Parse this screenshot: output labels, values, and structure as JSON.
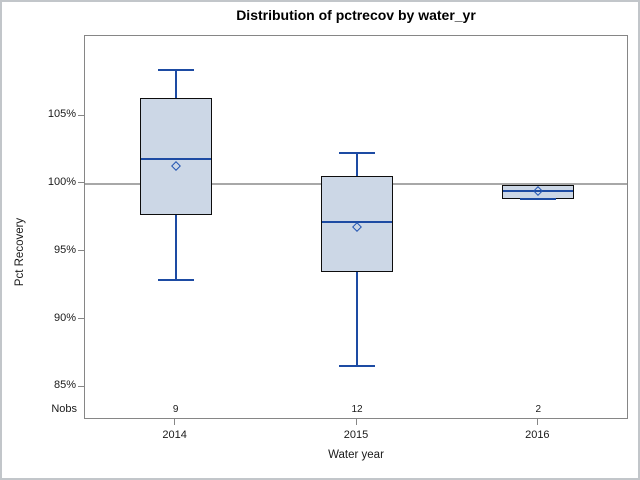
{
  "chart_data": {
    "type": "box",
    "title": "Distribution of pctrecov by water_yr",
    "xlabel": "Water year",
    "ylabel": "Pct Recovery",
    "nobs_label": "Nobs",
    "categories": [
      "2014",
      "2015",
      "2016"
    ],
    "nobs": [
      "9",
      "12",
      "2"
    ],
    "series": [
      {
        "category": "2014",
        "n": 9,
        "min": 92.9,
        "q1": 97.7,
        "median": 101.8,
        "q3": 106.3,
        "max": 108.4,
        "mean": 101.3
      },
      {
        "category": "2015",
        "n": 12,
        "min": 86.6,
        "q1": 93.5,
        "median": 97.2,
        "q3": 100.6,
        "max": 102.3,
        "mean": 96.8
      },
      {
        "category": "2016",
        "n": 2,
        "min": 98.9,
        "q1": 98.9,
        "median": 99.5,
        "q3": 99.9,
        "max": 99.9,
        "mean": 99.5
      }
    ],
    "y_axis": {
      "tick_labels": [
        "105%",
        "100%",
        "95%",
        "90%",
        "85%"
      ],
      "tick_values": [
        105,
        100,
        95,
        90,
        85
      ],
      "range": [
        82.6,
        110.9
      ]
    },
    "reference_line": 100,
    "grid": false,
    "legend": null,
    "colors": {
      "box_fill": "#ccd7e6",
      "box_border": "#0d0d0d",
      "whisker": "#1d4ba3",
      "median": "#1d4ba3",
      "mean_marker": "#2355b2",
      "reference_line": "#a8a8a8",
      "axis": "#868686",
      "text": "#1a1a1a"
    }
  }
}
